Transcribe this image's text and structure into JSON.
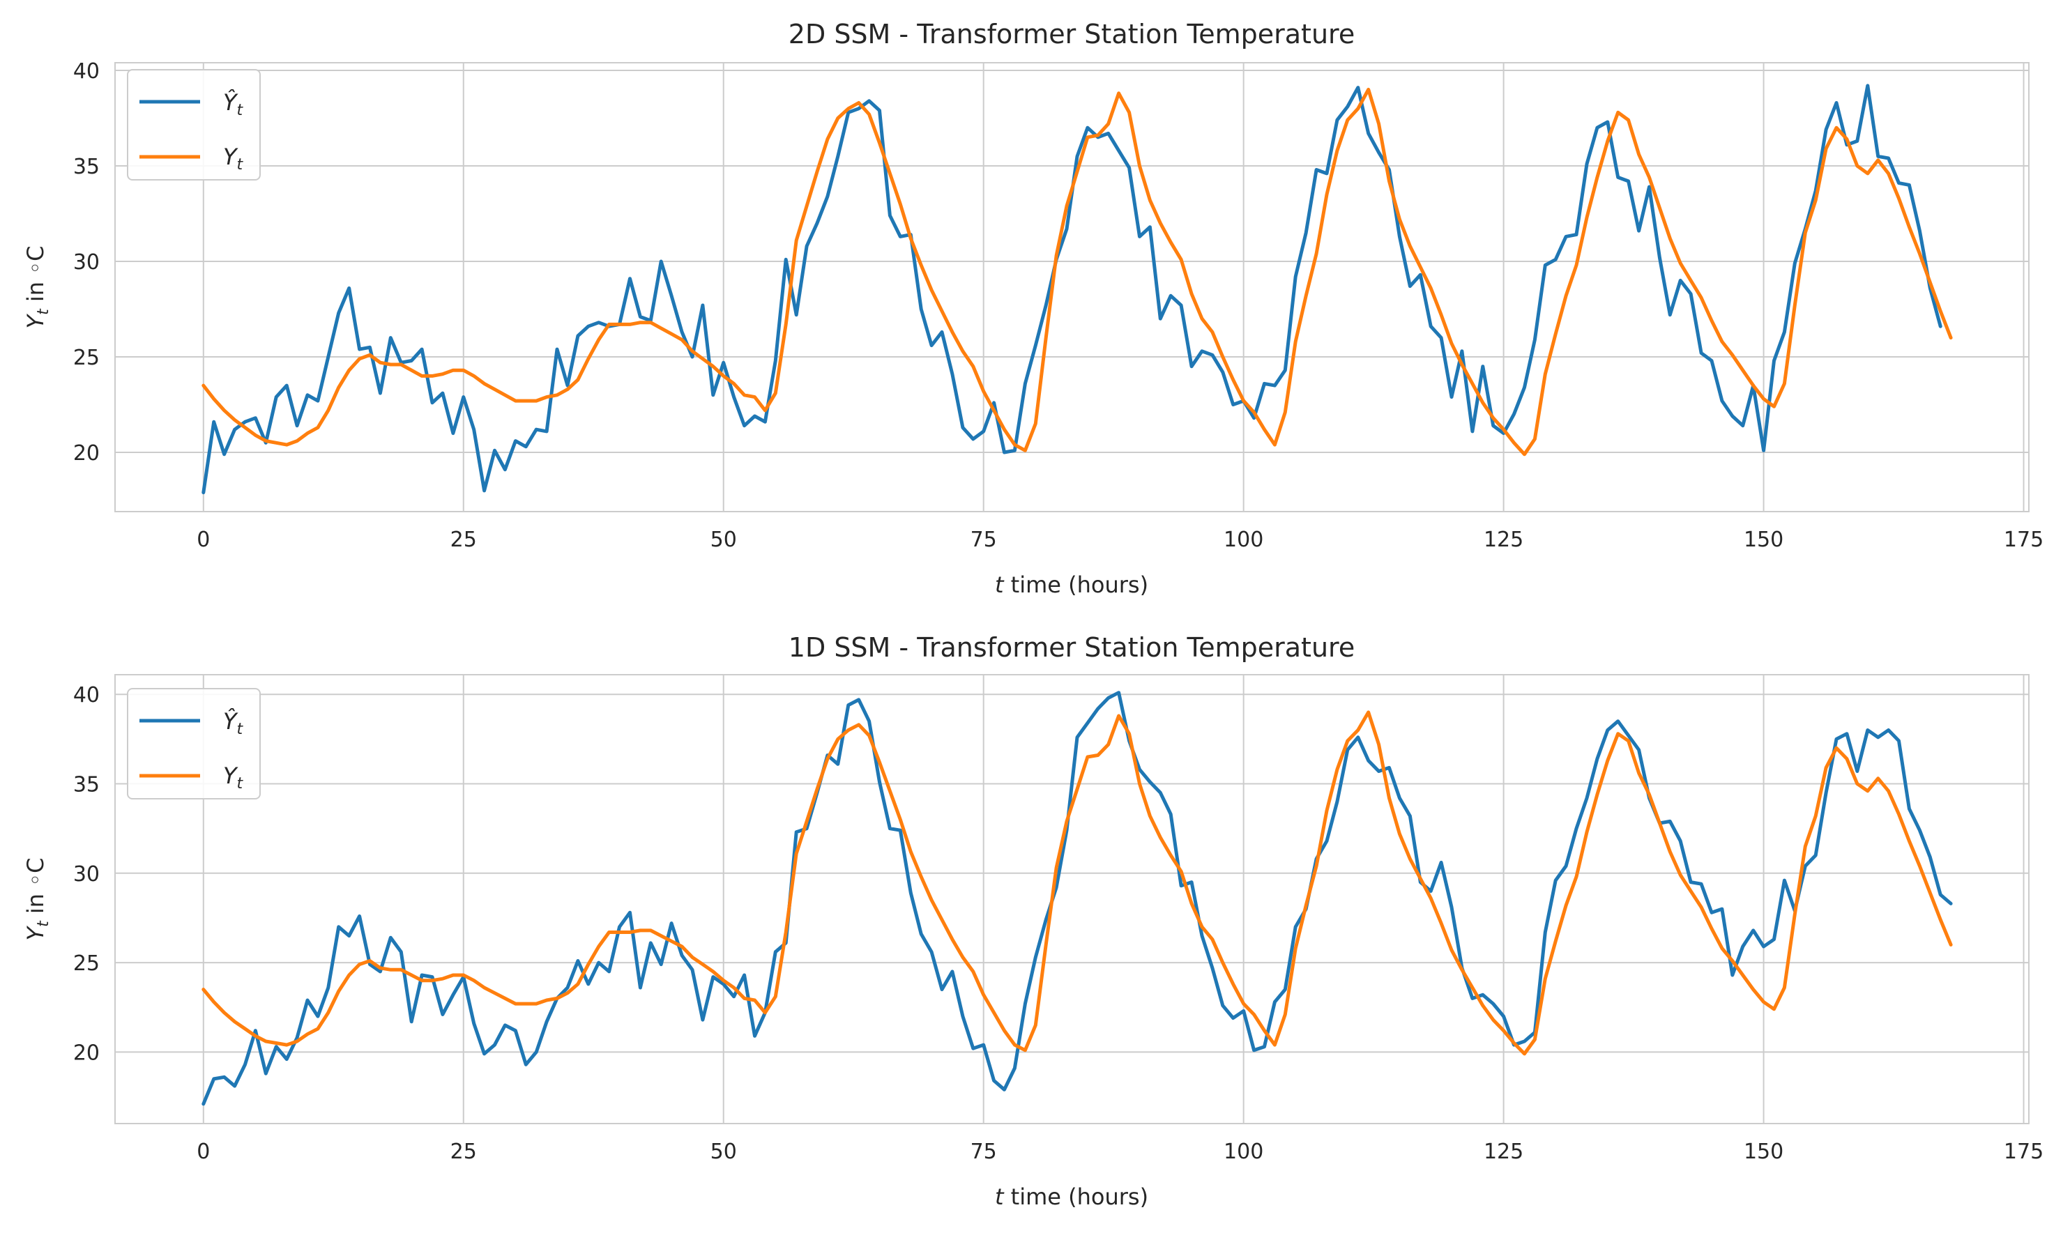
{
  "chart_data": [
    {
      "type": "line",
      "title": "2D SSM - Transformer Station Temperature",
      "xlabel_var": "t",
      "xlabel_rest": " time (hours)",
      "ylabel_var": "Y",
      "ylabel_sub": "t",
      "ylabel_rest": " in ◦C",
      "xlim": [
        -8.5,
        175.5
      ],
      "ylim": [
        16.9,
        40.4
      ],
      "xticks": [
        0,
        25,
        50,
        75,
        100,
        125,
        150,
        175
      ],
      "yticks": [
        20,
        25,
        30,
        35,
        40
      ],
      "grid": true,
      "legend_position": "top-left",
      "series": [
        {
          "name": "Ŷ",
          "subscript": "t",
          "color": "#1f77b4",
          "values": [
            17.9,
            21.6,
            19.9,
            21.2,
            21.6,
            21.8,
            20.5,
            22.9,
            23.5,
            21.4,
            23.0,
            22.7,
            25.0,
            27.3,
            28.6,
            25.4,
            25.5,
            23.1,
            26.0,
            24.7,
            24.8,
            25.4,
            22.6,
            23.1,
            21.0,
            22.9,
            21.2,
            18.0,
            20.1,
            19.1,
            20.6,
            20.3,
            21.2,
            21.1,
            25.4,
            23.5,
            26.1,
            26.6,
            26.8,
            26.6,
            26.7,
            29.1,
            27.1,
            26.9,
            30.0,
            28.2,
            26.3,
            25.0,
            27.7,
            23.0,
            24.7,
            22.9,
            21.4,
            21.9,
            21.6,
            24.8,
            30.1,
            27.2,
            30.8,
            32.0,
            33.4,
            35.5,
            37.8,
            38.0,
            38.4,
            37.9,
            32.4,
            31.3,
            31.4,
            27.5,
            25.6,
            26.3,
            24.1,
            21.3,
            20.7,
            21.1,
            22.6,
            20.0,
            20.1,
            23.6,
            25.6,
            27.7,
            30.1,
            31.7,
            35.5,
            37.0,
            36.5,
            36.7,
            35.8,
            34.9,
            31.3,
            31.8,
            27.0,
            28.2,
            27.7,
            24.5,
            25.3,
            25.1,
            24.2,
            22.5,
            22.7,
            21.8,
            23.6,
            23.5,
            24.3,
            29.2,
            31.5,
            34.8,
            34.6,
            37.4,
            38.1,
            39.1,
            36.7,
            35.7,
            34.8,
            31.3,
            28.7,
            29.3,
            26.6,
            26.0,
            22.9,
            25.3,
            21.1,
            24.5,
            21.4,
            21.0,
            22.0,
            23.4,
            25.9,
            29.8,
            30.1,
            31.3,
            31.4,
            35.1,
            37.0,
            37.3,
            34.4,
            34.2,
            31.6,
            33.9,
            30.2,
            27.2,
            29.0,
            28.3,
            25.2,
            24.8,
            22.7,
            21.9,
            21.4,
            23.5,
            20.1,
            24.8,
            26.3,
            29.9,
            31.7,
            33.7,
            36.9,
            38.3,
            36.1,
            36.3,
            39.2,
            35.5,
            35.4,
            34.1,
            34.0,
            31.6,
            28.6,
            26.6
          ]
        },
        {
          "name": "Y",
          "subscript": "t",
          "color": "#ff7f0e",
          "values": [
            23.5,
            22.8,
            22.2,
            21.7,
            21.3,
            20.9,
            20.6,
            20.5,
            20.4,
            20.6,
            21.0,
            21.3,
            22.2,
            23.4,
            24.3,
            24.9,
            25.1,
            24.7,
            24.6,
            24.6,
            24.3,
            24.0,
            24.0,
            24.1,
            24.3,
            24.3,
            24.0,
            23.6,
            23.3,
            23.0,
            22.7,
            22.7,
            22.7,
            22.9,
            23.0,
            23.3,
            23.8,
            24.9,
            25.9,
            26.7,
            26.7,
            26.7,
            26.8,
            26.8,
            26.5,
            26.2,
            25.9,
            25.3,
            24.9,
            24.5,
            24.0,
            23.6,
            23.0,
            22.9,
            22.2,
            23.1,
            26.7,
            31.1,
            32.9,
            34.7,
            36.4,
            37.5,
            38.0,
            38.3,
            37.7,
            36.2,
            34.6,
            33.0,
            31.2,
            29.8,
            28.5,
            27.4,
            26.3,
            25.3,
            24.5,
            23.2,
            22.2,
            21.2,
            20.4,
            20.1,
            21.5,
            26.0,
            30.3,
            32.9,
            34.7,
            36.5,
            36.6,
            37.2,
            38.8,
            37.8,
            35.0,
            33.2,
            32.0,
            31.0,
            30.1,
            28.3,
            27.0,
            26.3,
            25.0,
            23.8,
            22.7,
            22.1,
            21.2,
            20.4,
            22.1,
            25.8,
            28.2,
            30.4,
            33.5,
            35.8,
            37.4,
            38.0,
            39.0,
            37.2,
            34.2,
            32.2,
            30.8,
            29.7,
            28.6,
            27.2,
            25.7,
            24.6,
            23.6,
            22.6,
            21.8,
            21.2,
            20.5,
            19.9,
            20.7,
            24.1,
            26.2,
            28.2,
            29.8,
            32.3,
            34.4,
            36.3,
            37.8,
            37.4,
            35.6,
            34.4,
            32.8,
            31.2,
            29.9,
            29.0,
            28.1,
            26.9,
            25.8,
            25.1,
            24.3,
            23.5,
            22.8,
            22.4,
            23.6,
            27.7,
            31.5,
            33.2,
            35.9,
            37.0,
            36.4,
            35.0,
            34.6,
            35.3,
            34.6,
            33.3,
            31.8,
            30.4,
            28.9,
            27.4,
            26.0
          ]
        }
      ]
    },
    {
      "type": "line",
      "title": "1D SSM - Transformer Station Temperature",
      "xlabel_var": "t",
      "xlabel_rest": " time (hours)",
      "ylabel_var": "Y",
      "ylabel_sub": "t",
      "ylabel_rest": " in ◦C",
      "xlim": [
        -8.5,
        175.5
      ],
      "ylim": [
        16.0,
        41.1
      ],
      "xticks": [
        0,
        25,
        50,
        75,
        100,
        125,
        150,
        175
      ],
      "yticks": [
        20,
        25,
        30,
        35,
        40
      ],
      "grid": true,
      "legend_position": "top-left",
      "series": [
        {
          "name": "Ŷ",
          "subscript": "t",
          "color": "#1f77b4",
          "values": [
            17.1,
            18.5,
            18.6,
            18.1,
            19.3,
            21.2,
            18.8,
            20.3,
            19.6,
            20.8,
            22.9,
            22.0,
            23.6,
            27.0,
            26.5,
            27.6,
            24.9,
            24.5,
            26.4,
            25.6,
            21.7,
            24.3,
            24.2,
            22.1,
            23.2,
            24.2,
            21.6,
            19.9,
            20.4,
            21.5,
            21.2,
            19.3,
            20.0,
            21.7,
            23.0,
            23.6,
            25.1,
            23.8,
            25.0,
            24.5,
            27.0,
            27.8,
            23.6,
            26.1,
            24.9,
            27.2,
            25.4,
            24.6,
            21.8,
            24.2,
            23.8,
            23.1,
            24.3,
            20.9,
            22.2,
            25.6,
            26.1,
            32.3,
            32.5,
            34.5,
            36.6,
            36.1,
            39.4,
            39.7,
            38.5,
            35.1,
            32.5,
            32.4,
            28.9,
            26.6,
            25.6,
            23.5,
            24.5,
            22.0,
            20.2,
            20.4,
            18.4,
            17.9,
            19.1,
            22.7,
            25.3,
            27.4,
            29.2,
            32.4,
            37.6,
            38.4,
            39.2,
            39.8,
            40.1,
            37.4,
            35.8,
            35.1,
            34.5,
            33.3,
            29.3,
            29.5,
            26.5,
            24.7,
            22.6,
            21.9,
            22.3,
            20.1,
            20.3,
            22.8,
            23.5,
            27.0,
            28.0,
            30.8,
            31.8,
            34.0,
            36.9,
            37.6,
            36.3,
            35.7,
            35.9,
            34.2,
            33.2,
            29.5,
            29.0,
            30.6,
            28.1,
            24.7,
            23.0,
            23.2,
            22.7,
            22.0,
            20.4,
            20.6,
            21.1,
            26.7,
            29.6,
            30.4,
            32.5,
            34.2,
            36.4,
            38.0,
            38.5,
            37.7,
            36.9,
            34.2,
            32.8,
            32.9,
            31.8,
            29.5,
            29.4,
            27.8,
            28.0,
            24.3,
            25.9,
            26.8,
            25.9,
            26.3,
            29.6,
            27.9,
            30.4,
            31.0,
            34.5,
            37.5,
            37.8,
            35.7,
            38.0,
            37.6,
            38.0,
            37.4,
            33.6,
            32.4,
            30.9,
            28.8,
            28.3
          ]
        },
        {
          "name": "Y",
          "subscript": "t",
          "color": "#ff7f0e",
          "values": [
            23.5,
            22.8,
            22.2,
            21.7,
            21.3,
            20.9,
            20.6,
            20.5,
            20.4,
            20.6,
            21.0,
            21.3,
            22.2,
            23.4,
            24.3,
            24.9,
            25.1,
            24.7,
            24.6,
            24.6,
            24.3,
            24.0,
            24.0,
            24.1,
            24.3,
            24.3,
            24.0,
            23.6,
            23.3,
            23.0,
            22.7,
            22.7,
            22.7,
            22.9,
            23.0,
            23.3,
            23.8,
            24.9,
            25.9,
            26.7,
            26.7,
            26.7,
            26.8,
            26.8,
            26.5,
            26.2,
            25.9,
            25.3,
            24.9,
            24.5,
            24.0,
            23.6,
            23.0,
            22.9,
            22.2,
            23.1,
            26.7,
            31.1,
            32.9,
            34.7,
            36.4,
            37.5,
            38.0,
            38.3,
            37.7,
            36.2,
            34.6,
            33.0,
            31.2,
            29.8,
            28.5,
            27.4,
            26.3,
            25.3,
            24.5,
            23.2,
            22.2,
            21.2,
            20.4,
            20.1,
            21.5,
            26.0,
            30.3,
            32.9,
            34.7,
            36.5,
            36.6,
            37.2,
            38.8,
            37.8,
            35.0,
            33.2,
            32.0,
            31.0,
            30.1,
            28.3,
            27.0,
            26.3,
            25.0,
            23.8,
            22.7,
            22.1,
            21.2,
            20.4,
            22.1,
            25.8,
            28.2,
            30.4,
            33.5,
            35.8,
            37.4,
            38.0,
            39.0,
            37.2,
            34.2,
            32.2,
            30.8,
            29.7,
            28.6,
            27.2,
            25.7,
            24.6,
            23.6,
            22.6,
            21.8,
            21.2,
            20.5,
            19.9,
            20.7,
            24.1,
            26.2,
            28.2,
            29.8,
            32.3,
            34.4,
            36.3,
            37.8,
            37.4,
            35.6,
            34.4,
            32.8,
            31.2,
            29.9,
            29.0,
            28.1,
            26.9,
            25.8,
            25.1,
            24.3,
            23.5,
            22.8,
            22.4,
            23.6,
            27.7,
            31.5,
            33.2,
            35.9,
            37.0,
            36.4,
            35.0,
            34.6,
            35.3,
            34.6,
            33.3,
            31.8,
            30.4,
            28.9,
            27.4,
            26.0
          ]
        }
      ]
    }
  ]
}
